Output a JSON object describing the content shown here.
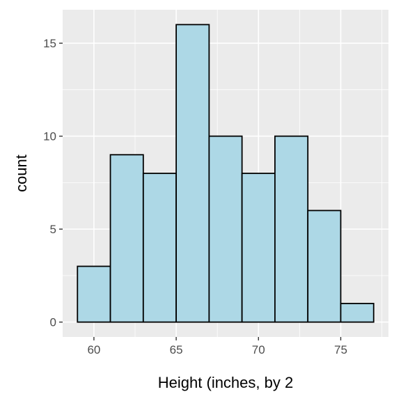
{
  "chart_data": {
    "type": "bar",
    "xlabel": "Height (inches, by 2",
    "ylabel": "count",
    "xlim": [
      58.1,
      77.9
    ],
    "ylim": [
      -0.8,
      16.8
    ],
    "grid": true,
    "bins": [
      {
        "start": 59,
        "end": 61,
        "count": 3
      },
      {
        "start": 61,
        "end": 63,
        "count": 9
      },
      {
        "start": 63,
        "end": 65,
        "count": 8
      },
      {
        "start": 65,
        "end": 67,
        "count": 16
      },
      {
        "start": 67,
        "end": 69,
        "count": 10
      },
      {
        "start": 69,
        "end": 71,
        "count": 8
      },
      {
        "start": 71,
        "end": 73,
        "count": 10
      },
      {
        "start": 73,
        "end": 75,
        "count": 6
      },
      {
        "start": 75,
        "end": 77,
        "count": 1
      }
    ],
    "x_ticks": [
      {
        "value": 60,
        "label": "60"
      },
      {
        "value": 65,
        "label": "65"
      },
      {
        "value": 70,
        "label": "70"
      },
      {
        "value": 75,
        "label": "75"
      }
    ],
    "y_ticks": [
      {
        "value": 0,
        "label": "0"
      },
      {
        "value": 5,
        "label": "5"
      },
      {
        "value": 10,
        "label": "10"
      },
      {
        "value": 15,
        "label": "15"
      }
    ],
    "colors": {
      "bar_fill": "#add8e6",
      "bar_stroke": "#000000",
      "panel_bg": "#ebebeb",
      "grid": "#ffffff"
    }
  }
}
